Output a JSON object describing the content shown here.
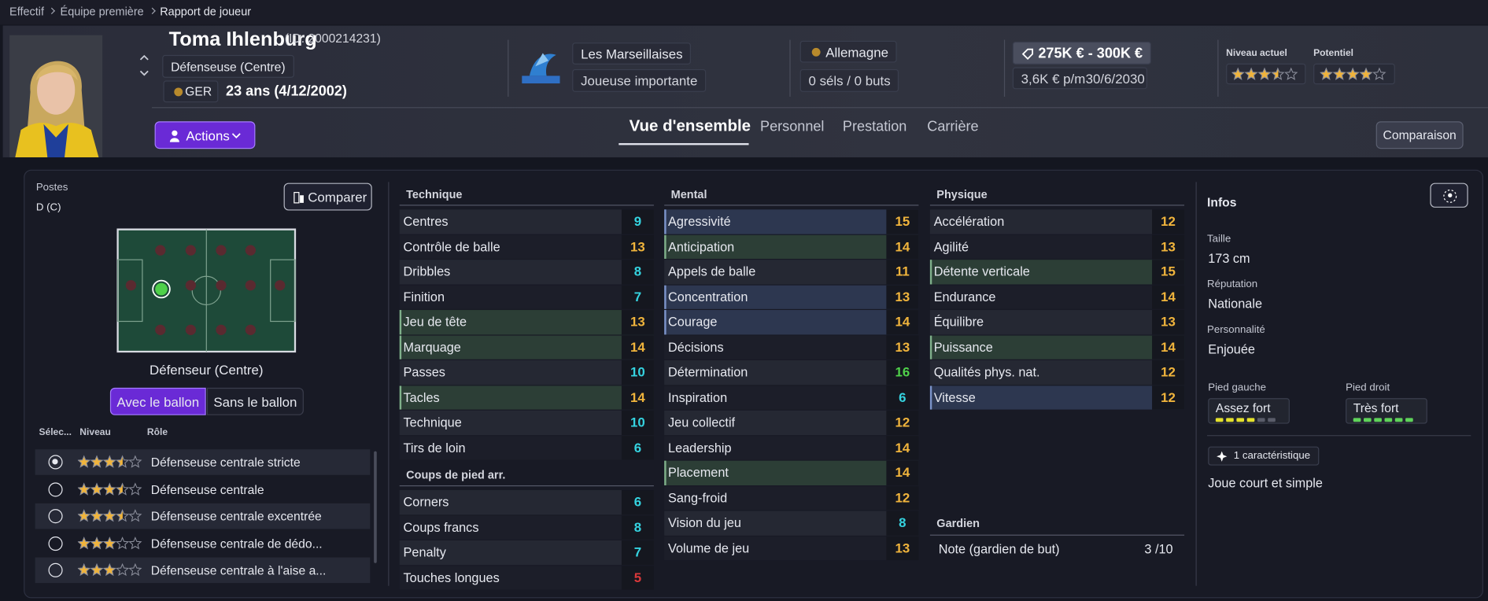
{
  "breadcrumb": [
    "Effectif",
    "Équipe première",
    "Rapport de joueur"
  ],
  "player": {
    "name": "Toma Ihlenburg",
    "id": "(ID: 2000214231)",
    "position": "Défenseuse (Centre)",
    "nation": "GER",
    "age": "23 ans (4/12/2002)",
    "club": "Les Marseillaises",
    "squad_status": "Joueuse importante",
    "country": "Allemagne",
    "caps": "0 séls / 0 buts",
    "value": "275K € - 300K €",
    "wage": "3,6K € p/m",
    "contract_end": "30/6/2030",
    "ability_label": "Niveau actuel",
    "ability_stars": 3.5,
    "potential_label": "Potentiel",
    "potential_stars": 4,
    "stars_max": 5
  },
  "actions": "Actions",
  "tabs": [
    "Vue d'ensemble",
    "Personnel",
    "Prestation",
    "Carrière"
  ],
  "active_tab": 0,
  "compare_button": "Comparaison",
  "positions": {
    "title": "Postes",
    "code": "D (C)",
    "compare": "Comparer",
    "pitch_label": "Défenseur (Centre)",
    "toggles": [
      "Avec le ballon",
      "Sans le ballon"
    ],
    "active_toggle": 0,
    "columns": [
      "Sélec...",
      "Niveau",
      "Rôle"
    ],
    "roles": [
      {
        "stars": 3.5,
        "name": "Défenseuse centrale stricte",
        "selected": true
      },
      {
        "stars": 3.5,
        "name": "Défenseuse centrale",
        "selected": false
      },
      {
        "stars": 3.5,
        "name": "Défenseuse centrale excentrée",
        "selected": false
      },
      {
        "stars": 3,
        "name": "Défenseuse centrale de dédo...",
        "selected": false
      },
      {
        "stars": 3,
        "name": "Défenseuse centrale à l'aise a...",
        "selected": false
      }
    ]
  },
  "technique": {
    "title": "Technique",
    "items": [
      {
        "name": "Centres",
        "value": 9
      },
      {
        "name": "Contrôle de balle",
        "value": 13
      },
      {
        "name": "Dribbles",
        "value": 8
      },
      {
        "name": "Finition",
        "value": 7
      },
      {
        "name": "Jeu de tête",
        "value": 13,
        "highlight": "green"
      },
      {
        "name": "Marquage",
        "value": 14,
        "highlight": "green"
      },
      {
        "name": "Passes",
        "value": 10
      },
      {
        "name": "Tacles",
        "value": 14,
        "highlight": "green"
      },
      {
        "name": "Technique",
        "value": 10
      },
      {
        "name": "Tirs de loin",
        "value": 6
      }
    ]
  },
  "set_pieces": {
    "title": "Coups de pied arr.",
    "items": [
      {
        "name": "Corners",
        "value": 6
      },
      {
        "name": "Coups francs",
        "value": 8
      },
      {
        "name": "Penalty",
        "value": 7
      },
      {
        "name": "Touches longues",
        "value": 5
      }
    ]
  },
  "mental": {
    "title": "Mental",
    "items": [
      {
        "name": "Agressivité",
        "value": 15,
        "highlight": "blue"
      },
      {
        "name": "Anticipation",
        "value": 14,
        "highlight": "green"
      },
      {
        "name": "Appels de balle",
        "value": 11
      },
      {
        "name": "Concentration",
        "value": 13,
        "highlight": "blue"
      },
      {
        "name": "Courage",
        "value": 14,
        "highlight": "blue"
      },
      {
        "name": "Décisions",
        "value": 13
      },
      {
        "name": "Détermination",
        "value": 16
      },
      {
        "name": "Inspiration",
        "value": 6
      },
      {
        "name": "Jeu collectif",
        "value": 12
      },
      {
        "name": "Leadership",
        "value": 14
      },
      {
        "name": "Placement",
        "value": 14,
        "highlight": "green"
      },
      {
        "name": "Sang-froid",
        "value": 12
      },
      {
        "name": "Vision du jeu",
        "value": 8
      },
      {
        "name": "Volume de jeu",
        "value": 13
      }
    ]
  },
  "physique": {
    "title": "Physique",
    "items": [
      {
        "name": "Accélération",
        "value": 12
      },
      {
        "name": "Agilité",
        "value": 13
      },
      {
        "name": "Détente verticale",
        "value": 15,
        "highlight": "green"
      },
      {
        "name": "Endurance",
        "value": 14
      },
      {
        "name": "Équilibre",
        "value": 13
      },
      {
        "name": "Puissance",
        "value": 14,
        "highlight": "green"
      },
      {
        "name": "Qualités phys. nat.",
        "value": 12
      },
      {
        "name": "Vitesse",
        "value": 12,
        "highlight": "blue"
      }
    ]
  },
  "goalkeeper": {
    "title": "Gardien",
    "label": "Note (gardien de but)",
    "rating": "3 /10"
  },
  "infos": {
    "title": "Infos",
    "fields": [
      {
        "label": "Taille",
        "value": "173 cm"
      },
      {
        "label": "Réputation",
        "value": "Nationale"
      },
      {
        "label": "Personnalité",
        "value": "Enjouée"
      }
    ],
    "feet": [
      {
        "label": "Pied gauche",
        "value": "Assez fort",
        "level": 4,
        "color": "#e4e12c"
      },
      {
        "label": "Pied droit",
        "value": "Très fort",
        "level": 6,
        "color": "#5fd35a"
      }
    ],
    "feet_scale": 6,
    "traits_count": "1 caractéristique",
    "traits": [
      "Joue court et simple"
    ]
  }
}
